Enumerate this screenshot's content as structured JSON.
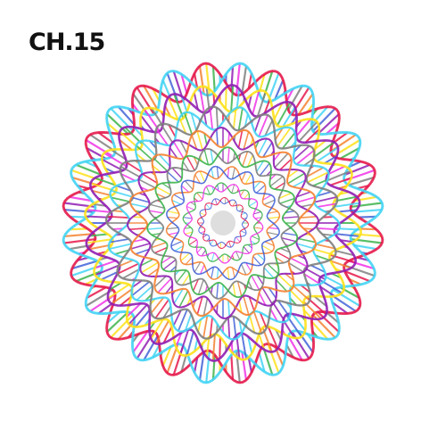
{
  "chapter": {
    "title": "CH.15"
  },
  "artwork": {
    "subject": "dna-helix-mandala",
    "palette": [
      "#e6194b",
      "#f58231",
      "#ffe119",
      "#3cb44b",
      "#42d4f4",
      "#4363d8",
      "#911eb4",
      "#f032e6",
      "#808080"
    ]
  }
}
